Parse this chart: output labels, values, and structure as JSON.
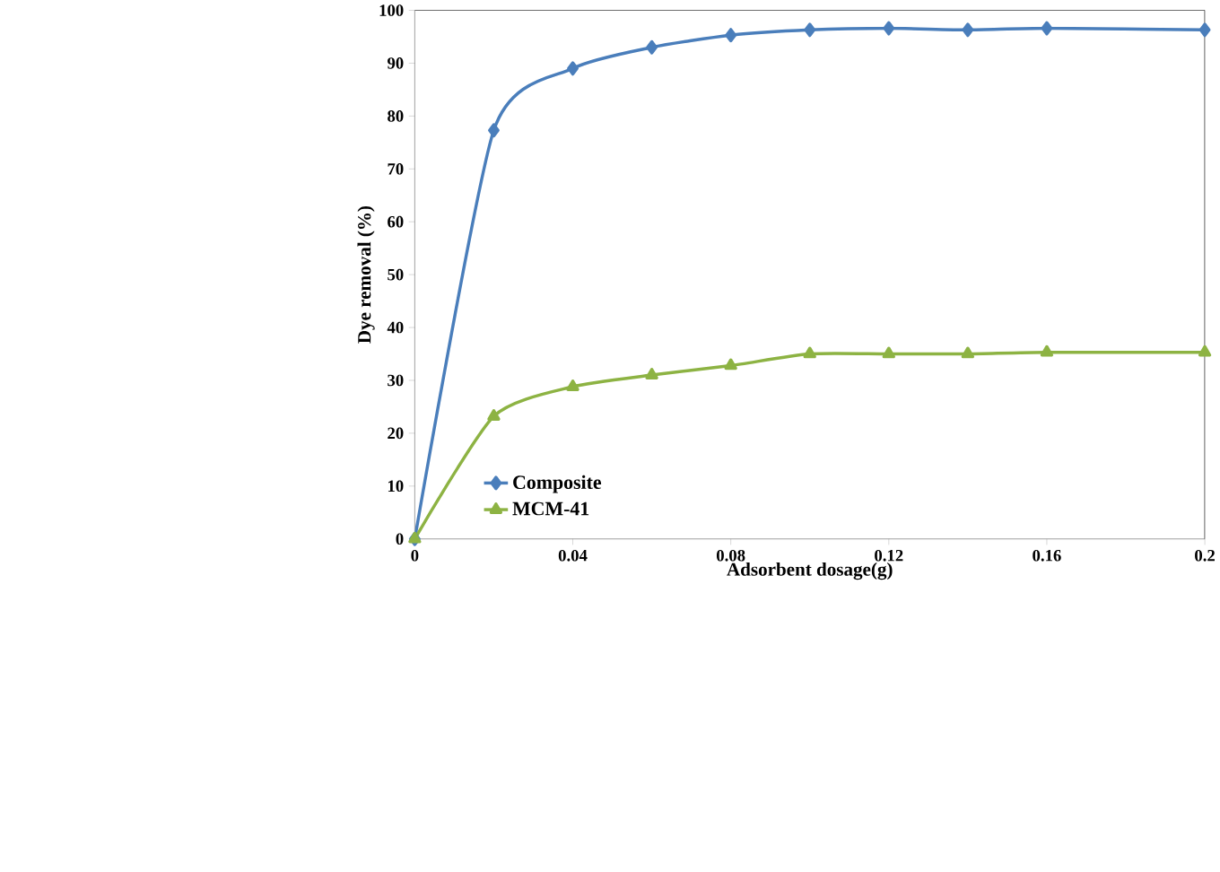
{
  "chart_data": {
    "type": "line",
    "xlabel": "Adsorbent dosage(g)",
    "ylabel": "Dye removal (%)",
    "x": [
      0,
      0.02,
      0.04,
      0.06,
      0.08,
      0.1,
      0.12,
      0.14,
      0.16,
      0.2
    ],
    "series": [
      {
        "name": "Composite",
        "color": "#4a7ebb",
        "marker": "diamond",
        "values": [
          0,
          77.3,
          89,
          93,
          95.3,
          96.3,
          96.6,
          96.3,
          96.6,
          96.3
        ]
      },
      {
        "name": "MCM-41",
        "color": "#8db343",
        "marker": "triangle",
        "values": [
          0,
          23.2,
          28.8,
          31,
          32.8,
          35,
          35,
          35,
          35.3,
          35.3
        ]
      }
    ],
    "xlim": [
      0,
      0.2
    ],
    "ylim": [
      0,
      100
    ],
    "xticks": [
      0,
      0.04,
      0.08,
      0.12,
      0.16,
      0.2
    ],
    "yticks": [
      0,
      10,
      20,
      30,
      40,
      50,
      60,
      70,
      80,
      90,
      100
    ],
    "grid": false,
    "legend": "bottom left",
    "line_style": "solid"
  }
}
